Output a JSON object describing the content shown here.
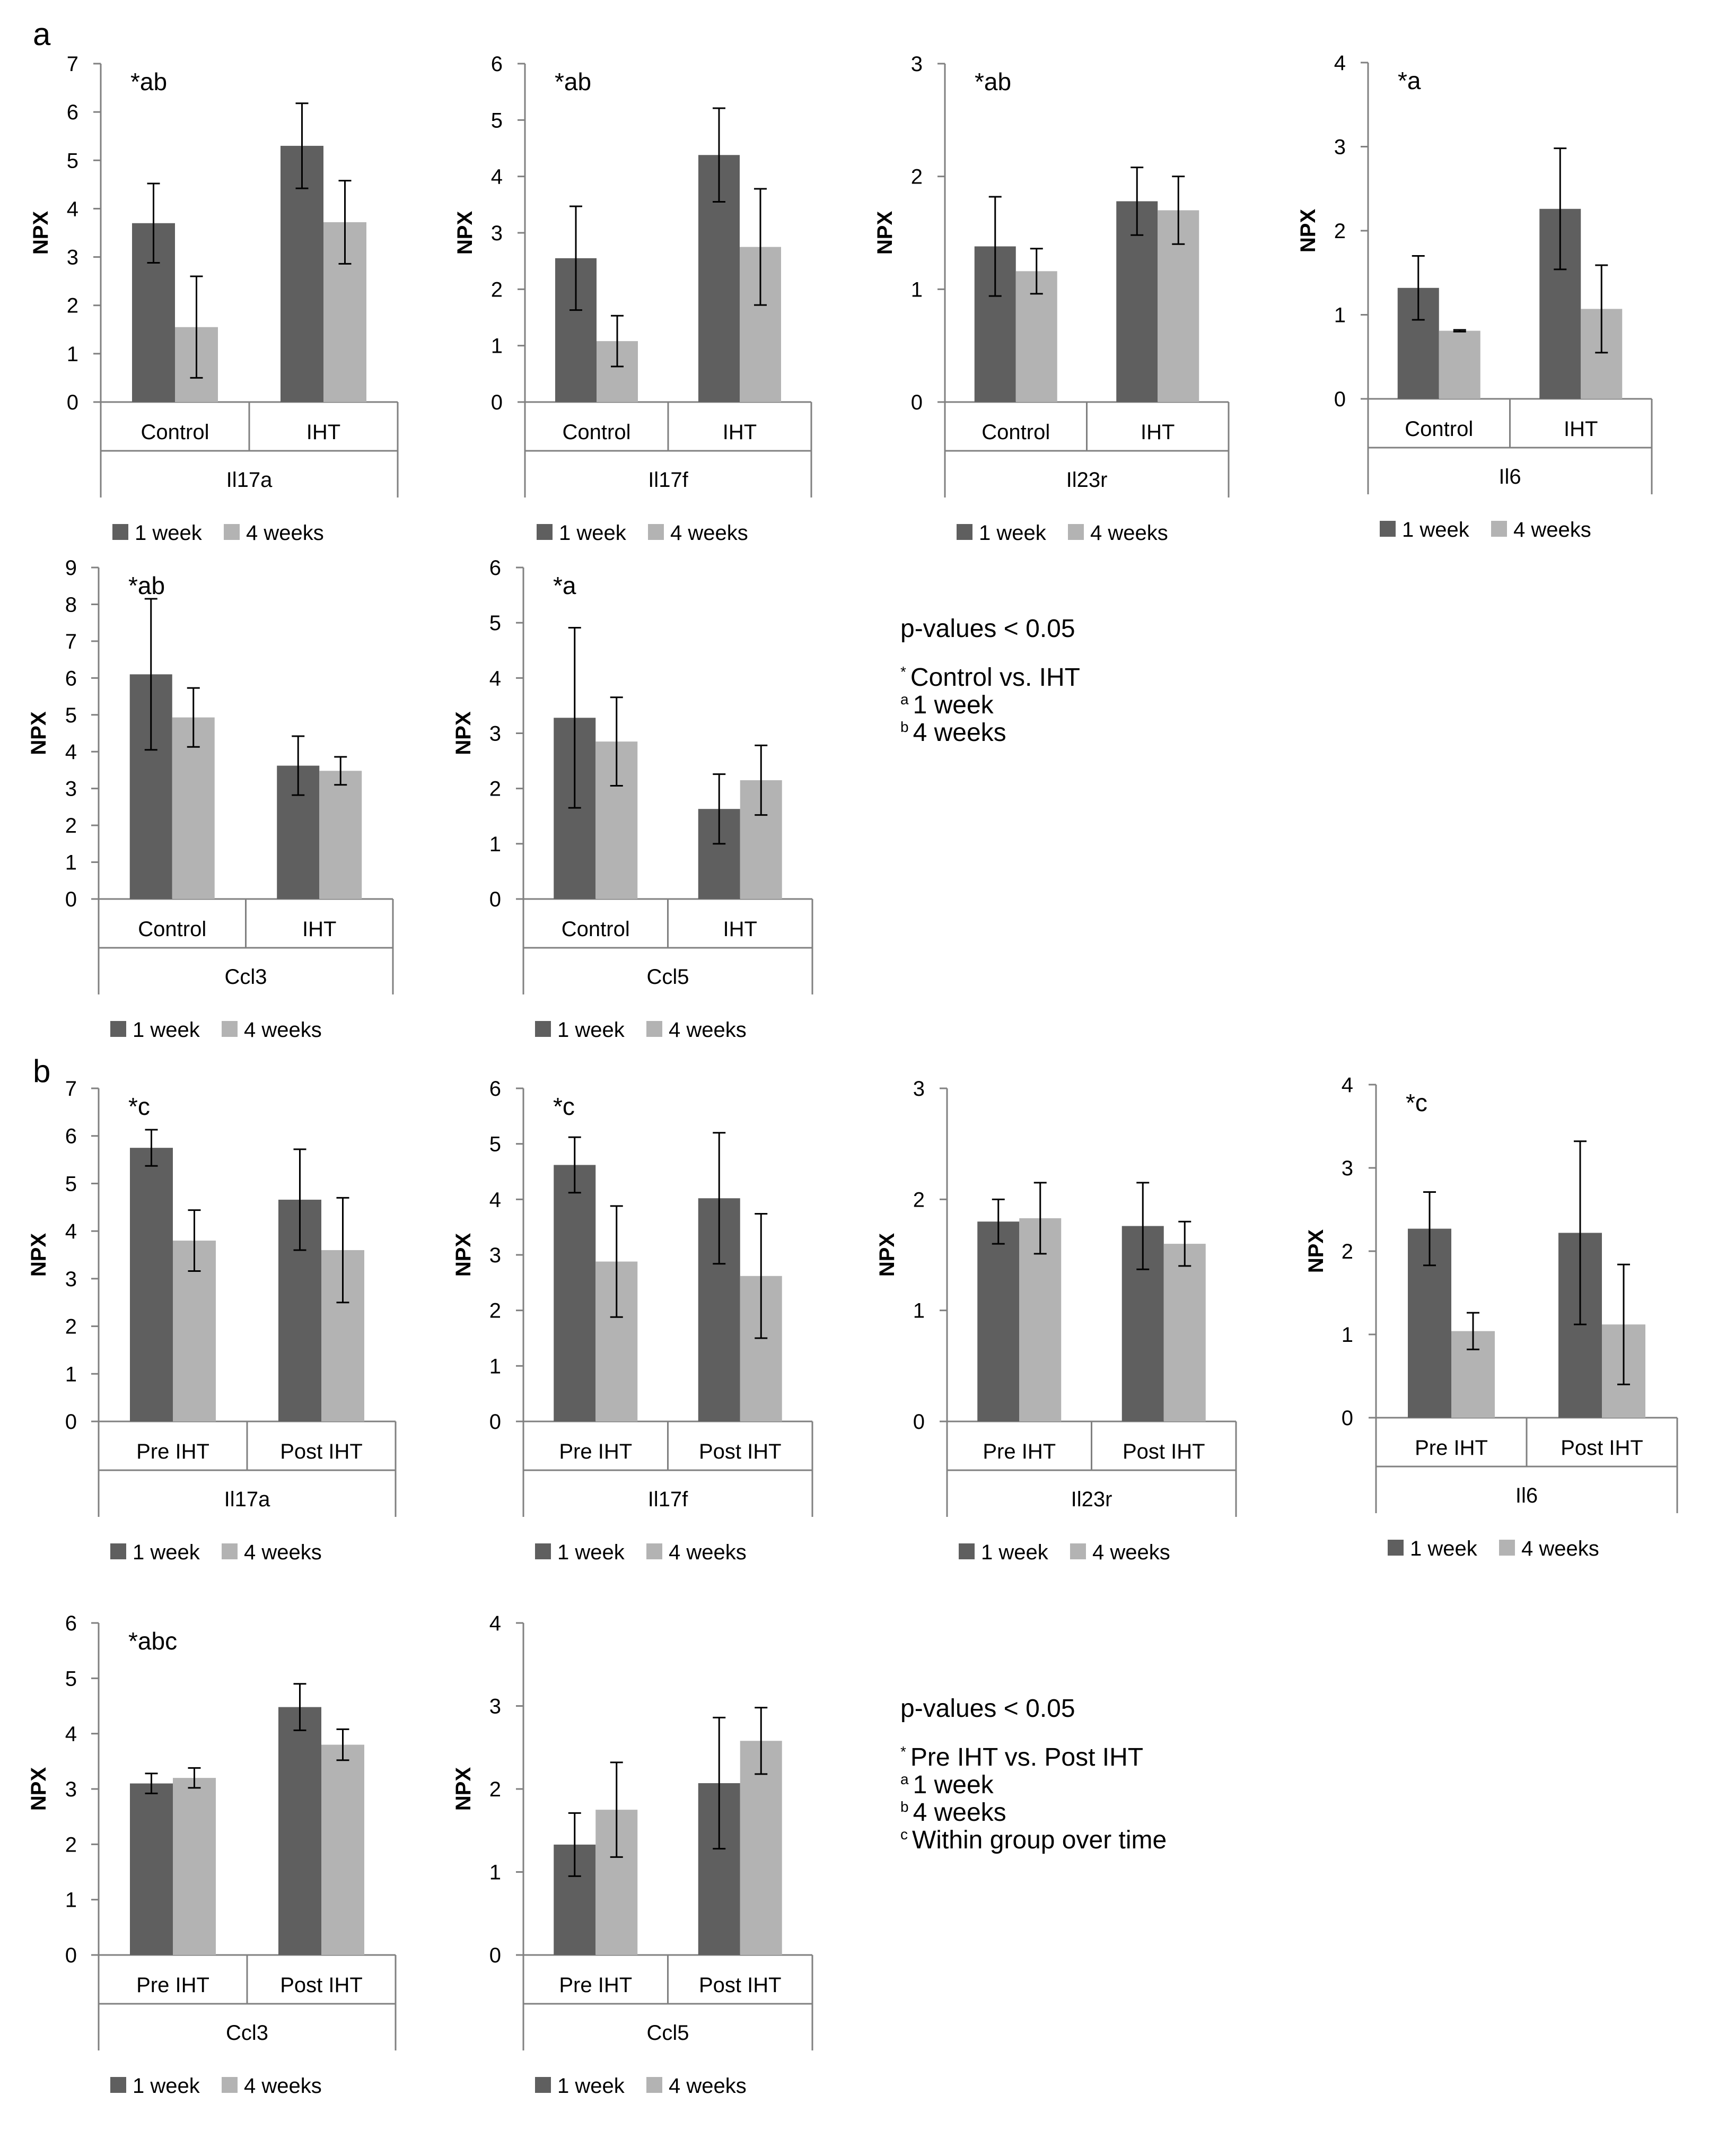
{
  "panels": {
    "a": "a",
    "b": "b"
  },
  "legend": {
    "series1": "1 week",
    "series2": "4 weeks"
  },
  "colors": {
    "series1": "#5f5f5f",
    "series2": "#b3b3b3",
    "axis": "#808080",
    "error": "#000000"
  },
  "notes": {
    "a": {
      "title": "p-values < 0.05",
      "lines": [
        {
          "sup": "*",
          "text": "Control vs. IHT"
        },
        {
          "sup": "a",
          "text": "1 week"
        },
        {
          "sup": "b",
          "text": "4 weeks"
        }
      ]
    },
    "b": {
      "title": "p-values < 0.05",
      "lines": [
        {
          "sup": "*",
          "text": "Pre IHT vs. Post IHT"
        },
        {
          "sup": "a",
          "text": "1 week"
        },
        {
          "sup": "b",
          "text": "4 weeks"
        },
        {
          "sup": "c",
          "text": "Within group over time"
        }
      ]
    }
  },
  "chart_data": [
    {
      "type": "bar",
      "panel": "a",
      "title": "Il17a",
      "annotation": "*ab",
      "ylabel": "NPX",
      "ylim": [
        0,
        7
      ],
      "yticks": [
        0,
        1,
        2,
        3,
        4,
        5,
        6,
        7
      ],
      "categories": [
        "Control",
        "IHT"
      ],
      "series": [
        {
          "name": "1 week",
          "values": [
            3.7,
            5.3
          ],
          "errors": [
            0.82,
            0.88
          ]
        },
        {
          "name": "4 weeks",
          "values": [
            1.55,
            3.72
          ],
          "errors": [
            1.05,
            0.86
          ]
        }
      ]
    },
    {
      "type": "bar",
      "panel": "a",
      "title": "Il17f",
      "annotation": "*ab",
      "ylabel": "NPX",
      "ylim": [
        0,
        6
      ],
      "yticks": [
        0,
        1,
        2,
        3,
        4,
        5,
        6
      ],
      "categories": [
        "Control",
        "IHT"
      ],
      "series": [
        {
          "name": "1 week",
          "values": [
            2.55,
            4.38
          ],
          "errors": [
            0.92,
            0.83
          ]
        },
        {
          "name": "4 weeks",
          "values": [
            1.08,
            2.75
          ],
          "errors": [
            0.45,
            1.03
          ]
        }
      ]
    },
    {
      "type": "bar",
      "panel": "a",
      "title": "Il23r",
      "annotation": "*ab",
      "ylabel": "NPX",
      "ylim": [
        0,
        3
      ],
      "yticks": [
        0,
        1,
        2,
        3
      ],
      "categories": [
        "Control",
        "IHT"
      ],
      "series": [
        {
          "name": "1 week",
          "values": [
            1.38,
            1.78
          ],
          "errors": [
            0.44,
            0.3
          ]
        },
        {
          "name": "4 weeks",
          "values": [
            1.16,
            1.7
          ],
          "errors": [
            0.2,
            0.3
          ]
        }
      ]
    },
    {
      "type": "bar",
      "panel": "a",
      "title": "Il6",
      "annotation": "*a",
      "ylabel": "NPX",
      "ylim": [
        0,
        4
      ],
      "yticks": [
        0,
        1,
        2,
        3,
        4
      ],
      "categories": [
        "Control",
        "IHT"
      ],
      "series": [
        {
          "name": "1 week",
          "values": [
            1.32,
            2.26
          ],
          "errors": [
            0.38,
            0.72
          ]
        },
        {
          "name": "4 weeks",
          "values": [
            0.81,
            1.07
          ],
          "errors": [
            0.01,
            0.52
          ]
        }
      ]
    },
    {
      "type": "bar",
      "panel": "a",
      "title": "Ccl3",
      "annotation": "*ab",
      "ylabel": "NPX",
      "ylim": [
        0,
        9
      ],
      "yticks": [
        0,
        1,
        2,
        3,
        4,
        5,
        6,
        7,
        8,
        9
      ],
      "categories": [
        "Control",
        "IHT"
      ],
      "series": [
        {
          "name": "1 week",
          "values": [
            6.1,
            3.62
          ],
          "errors": [
            2.05,
            0.8
          ]
        },
        {
          "name": "4 weeks",
          "values": [
            4.93,
            3.48
          ],
          "errors": [
            0.8,
            0.38
          ]
        }
      ]
    },
    {
      "type": "bar",
      "panel": "a",
      "title": "Ccl5",
      "annotation": "*a",
      "ylabel": "NPX",
      "ylim": [
        0,
        6
      ],
      "yticks": [
        0,
        1,
        2,
        3,
        4,
        5,
        6
      ],
      "categories": [
        "Control",
        "IHT"
      ],
      "series": [
        {
          "name": "1 week",
          "values": [
            3.28,
            1.63
          ],
          "errors": [
            1.63,
            0.63
          ]
        },
        {
          "name": "4 weeks",
          "values": [
            2.85,
            2.15
          ],
          "errors": [
            0.8,
            0.63
          ]
        }
      ]
    },
    {
      "type": "bar",
      "panel": "b",
      "title": "Il17a",
      "annotation": "*c",
      "ylabel": "NPX",
      "ylim": [
        0,
        7
      ],
      "yticks": [
        0,
        1,
        2,
        3,
        4,
        5,
        6,
        7
      ],
      "categories": [
        "Pre IHT",
        "Post IHT"
      ],
      "series": [
        {
          "name": "1 week",
          "values": [
            5.75,
            4.66
          ],
          "errors": [
            0.38,
            1.06
          ]
        },
        {
          "name": "4 weeks",
          "values": [
            3.8,
            3.6
          ],
          "errors": [
            0.64,
            1.1
          ]
        }
      ]
    },
    {
      "type": "bar",
      "panel": "b",
      "title": "Il17f",
      "annotation": "*c",
      "ylabel": "NPX",
      "ylim": [
        0,
        6
      ],
      "yticks": [
        0,
        1,
        2,
        3,
        4,
        5,
        6
      ],
      "categories": [
        "Pre IHT",
        "Post IHT"
      ],
      "series": [
        {
          "name": "1 week",
          "values": [
            4.62,
            4.02
          ],
          "errors": [
            0.5,
            1.18
          ]
        },
        {
          "name": "4 weeks",
          "values": [
            2.88,
            2.62
          ],
          "errors": [
            1.0,
            1.12
          ]
        }
      ]
    },
    {
      "type": "bar",
      "panel": "b",
      "title": "Il23r",
      "annotation": "",
      "ylabel": "NPX",
      "ylim": [
        0,
        3
      ],
      "yticks": [
        0,
        1,
        2,
        3
      ],
      "categories": [
        "Pre IHT",
        "Post IHT"
      ],
      "series": [
        {
          "name": "1 week",
          "values": [
            1.8,
            1.76
          ],
          "errors": [
            0.2,
            0.39
          ]
        },
        {
          "name": "4 weeks",
          "values": [
            1.83,
            1.6
          ],
          "errors": [
            0.32,
            0.2
          ]
        }
      ]
    },
    {
      "type": "bar",
      "panel": "b",
      "title": "Il6",
      "annotation": "*c",
      "ylabel": "NPX",
      "ylim": [
        0,
        4
      ],
      "yticks": [
        0,
        1,
        2,
        3,
        4
      ],
      "categories": [
        "Pre IHT",
        "Post IHT"
      ],
      "series": [
        {
          "name": "1 week",
          "values": [
            2.27,
            2.22
          ],
          "errors": [
            0.44,
            1.1
          ]
        },
        {
          "name": "4 weeks",
          "values": [
            1.04,
            1.12
          ],
          "errors": [
            0.22,
            0.72
          ]
        }
      ]
    },
    {
      "type": "bar",
      "panel": "b",
      "title": "Ccl3",
      "annotation": "*abc",
      "ylabel": "NPX",
      "ylim": [
        0,
        6
      ],
      "yticks": [
        0,
        1,
        2,
        3,
        4,
        5,
        6
      ],
      "categories": [
        "Pre IHT",
        "Post IHT"
      ],
      "series": [
        {
          "name": "1 week",
          "values": [
            3.1,
            4.48
          ],
          "errors": [
            0.18,
            0.42
          ]
        },
        {
          "name": "4 weeks",
          "values": [
            3.2,
            3.8
          ],
          "errors": [
            0.18,
            0.28
          ]
        }
      ]
    },
    {
      "type": "bar",
      "panel": "b",
      "title": "Ccl5",
      "annotation": "",
      "ylabel": "NPX",
      "ylim": [
        0,
        4
      ],
      "yticks": [
        0,
        1,
        2,
        3,
        4
      ],
      "categories": [
        "Pre IHT",
        "Post IHT"
      ],
      "series": [
        {
          "name": "1 week",
          "values": [
            1.33,
            2.07
          ],
          "errors": [
            0.38,
            0.79
          ]
        },
        {
          "name": "4 weeks",
          "values": [
            1.75,
            2.58
          ],
          "errors": [
            0.57,
            0.4
          ]
        }
      ]
    }
  ]
}
